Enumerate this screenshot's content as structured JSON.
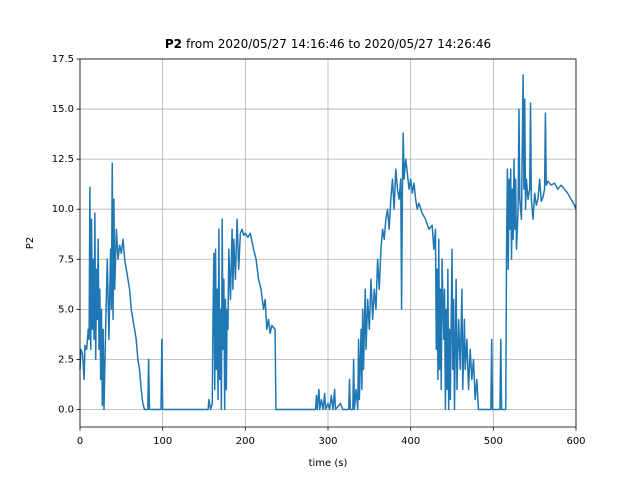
{
  "chart_data": {
    "type": "line",
    "title_bold": "P2",
    "title": "from 2020/05/27 14:16:46 to 2020/05/27 14:26:46",
    "xlabel": "time (s)",
    "ylabel": "P2",
    "xlim": [
      0,
      600
    ],
    "xticks": [
      0,
      100,
      200,
      300,
      400,
      500,
      600
    ],
    "ylim": [
      -0.875,
      17.5
    ],
    "yticks": [
      {
        "value": 0,
        "label": "0.0"
      },
      2.5,
      {
        "value": 5,
        "label": "5.0"
      },
      7.5,
      {
        "value": 10,
        "label": "10.0"
      },
      12.5,
      {
        "value": 15,
        "label": "15.0"
      },
      17.5
    ],
    "grid": true,
    "color": "#1f77b4",
    "x": [
      0,
      1,
      3,
      5,
      6,
      8,
      10,
      11,
      12,
      13,
      14,
      15,
      16,
      17,
      18,
      19,
      20,
      21,
      22,
      23,
      24,
      25,
      26,
      27,
      28,
      29,
      31,
      33,
      35,
      37,
      38,
      39,
      40,
      41,
      42,
      44,
      46,
      48,
      50,
      52,
      54,
      56,
      58,
      60,
      62,
      64,
      66,
      68,
      70,
      72,
      74,
      76,
      78,
      82,
      83,
      84,
      98,
      99,
      100,
      155,
      156,
      158,
      160,
      161,
      162,
      163,
      164,
      165,
      166,
      167,
      168,
      169,
      170,
      171,
      172,
      173,
      174,
      175,
      176,
      177,
      178,
      179,
      180,
      182,
      184,
      185,
      186,
      188,
      190,
      192,
      194,
      196,
      198,
      200,
      203,
      206,
      210,
      213,
      216,
      219,
      222,
      224,
      226,
      228,
      230,
      232,
      236,
      237,
      285,
      286,
      287,
      289,
      290,
      292,
      294,
      296,
      297,
      300,
      302,
      304,
      306,
      308,
      309,
      315,
      318,
      325,
      326,
      327,
      330,
      331,
      332,
      334,
      336,
      337,
      338,
      340,
      341,
      342,
      343,
      345,
      346,
      348,
      350,
      352,
      354,
      356,
      358,
      360,
      362,
      364,
      366,
      368,
      370,
      372,
      374,
      376,
      378,
      380,
      382,
      384,
      386,
      388,
      389,
      390,
      391,
      392,
      394,
      396,
      398,
      400,
      402,
      404,
      406,
      408,
      410,
      414,
      418,
      422,
      426,
      428,
      430,
      431,
      432,
      433,
      434,
      435,
      436,
      437,
      438,
      440,
      441,
      442,
      443,
      444,
      445,
      446,
      447,
      448,
      450,
      451,
      452,
      453,
      455,
      456,
      458,
      460,
      462,
      463,
      465,
      466,
      468,
      470,
      472,
      474,
      476,
      478,
      480,
      482,
      497,
      498,
      499,
      508,
      509,
      510,
      515,
      516,
      517,
      518,
      519,
      520,
      521,
      522,
      523,
      524,
      525,
      526,
      527,
      528,
      530,
      531,
      532,
      534,
      536,
      537,
      538,
      539,
      540,
      542,
      544,
      545,
      546,
      548,
      550,
      552,
      554,
      556,
      558,
      560,
      562,
      563,
      564,
      566,
      570,
      574,
      578,
      582,
      586,
      590,
      594,
      597,
      600
    ],
    "values": [
      2.0,
      3.0,
      2.8,
      1.5,
      3.2,
      3.0,
      4.0,
      3.5,
      11.1,
      3.0,
      9.5,
      4.0,
      7.5,
      3.5,
      9.8,
      2.5,
      7.0,
      4.5,
      8.5,
      3.0,
      6.0,
      1.5,
      5.0,
      0.2,
      4.0,
      0.0,
      4.0,
      7.5,
      3.5,
      8.0,
      5.0,
      12.3,
      4.5,
      10.5,
      6.0,
      9.0,
      7.5,
      8.2,
      7.8,
      8.5,
      7.5,
      7.0,
      6.5,
      6.0,
      5.0,
      4.5,
      4.0,
      3.5,
      2.5,
      2.0,
      1.0,
      0.3,
      0.0,
      0.0,
      2.5,
      0.0,
      0.0,
      3.5,
      0.0,
      0.0,
      0.5,
      0.0,
      0.3,
      5.0,
      7.8,
      1.0,
      8.0,
      2.0,
      6.0,
      0.5,
      9.0,
      1.5,
      5.0,
      0.0,
      9.5,
      3.0,
      6.5,
      0.0,
      5.5,
      1.0,
      5.0,
      4.0,
      8.0,
      5.5,
      9.0,
      6.0,
      8.5,
      6.5,
      9.5,
      7.0,
      8.8,
      9.0,
      8.7,
      8.8,
      8.6,
      8.8,
      8.0,
      7.5,
      6.5,
      6.0,
      5.0,
      5.5,
      4.0,
      4.5,
      3.8,
      4.2,
      4.0,
      0.0,
      0.0,
      0.7,
      0.0,
      1.0,
      0.0,
      0.5,
      0.0,
      0.8,
      0.0,
      0.3,
      0.0,
      0.7,
      0.0,
      1.0,
      0.0,
      0.3,
      0.0,
      0.0,
      1.5,
      0.0,
      0.0,
      2.5,
      0.0,
      1.0,
      0.0,
      3.5,
      0.5,
      4.0,
      1.0,
      5.0,
      2.0,
      6.0,
      3.0,
      5.5,
      4.0,
      6.5,
      4.5,
      6.0,
      5.0,
      7.5,
      6.0,
      8.0,
      9.0,
      8.5,
      9.5,
      10.0,
      9.0,
      10.5,
      11.5,
      10.0,
      12.0,
      11.0,
      10.5,
      11.5,
      5.0,
      11.0,
      13.8,
      11.5,
      12.5,
      11.8,
      11.0,
      11.5,
      10.8,
      11.3,
      10.5,
      10.0,
      10.3,
      9.8,
      9.5,
      9.0,
      9.2,
      8.0,
      9.0,
      3.0,
      7.0,
      1.5,
      8.5,
      2.0,
      6.0,
      1.0,
      7.5,
      3.5,
      6.0,
      0.0,
      5.0,
      1.0,
      7.0,
      0.0,
      4.0,
      0.5,
      8.0,
      2.0,
      5.5,
      0.0,
      6.5,
      1.0,
      4.5,
      2.0,
      6.0,
      1.0,
      4.5,
      2.0,
      3.5,
      1.0,
      3.0,
      1.5,
      2.5,
      0.5,
      1.5,
      0.0,
      0.0,
      3.5,
      0.0,
      0.0,
      3.5,
      0.0,
      0.0,
      8.0,
      12.0,
      7.0,
      11.5,
      9.0,
      12.0,
      7.5,
      11.0,
      8.5,
      12.5,
      9.0,
      11.5,
      8.0,
      10.0,
      15.0,
      10.5,
      9.5,
      16.7,
      11.0,
      15.5,
      10.0,
      11.5,
      10.5,
      11.0,
      15.3,
      10.5,
      9.5,
      10.8,
      10.2,
      10.5,
      11.5,
      10.4,
      10.6,
      11.0,
      14.8,
      11.2,
      11.4,
      11.2,
      11.3,
      11.0,
      11.2,
      11.0,
      10.8,
      10.5,
      10.3,
      10.0
    ]
  }
}
